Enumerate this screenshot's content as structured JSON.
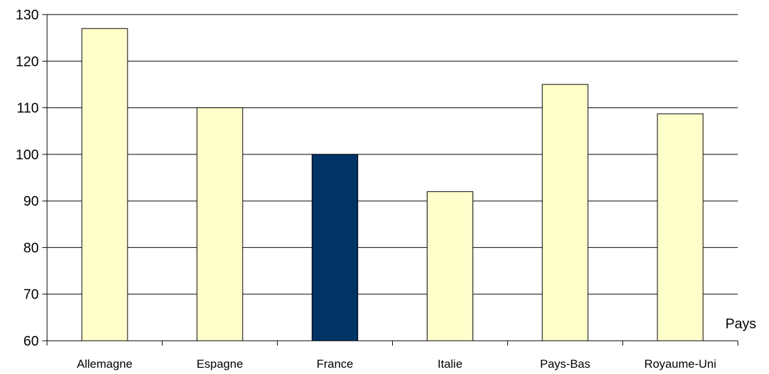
{
  "chart_data": {
    "type": "bar",
    "title": "",
    "xlabel": "Pays",
    "ylabel": "",
    "ylim": [
      60,
      130
    ],
    "yticks": [
      60,
      70,
      80,
      90,
      100,
      110,
      120,
      130
    ],
    "grid": true,
    "categories": [
      "Allemagne",
      "Espagne",
      "France",
      "Italie",
      "Pays-Bas",
      "Royaume-Uni"
    ],
    "values": [
      127,
      110,
      100,
      92,
      115,
      108.7
    ],
    "highlight_category": "France",
    "colors": {
      "bar": "#ffffcc",
      "highlight": "#003366",
      "bar_stroke": "#000000",
      "grid": "#000000"
    }
  }
}
